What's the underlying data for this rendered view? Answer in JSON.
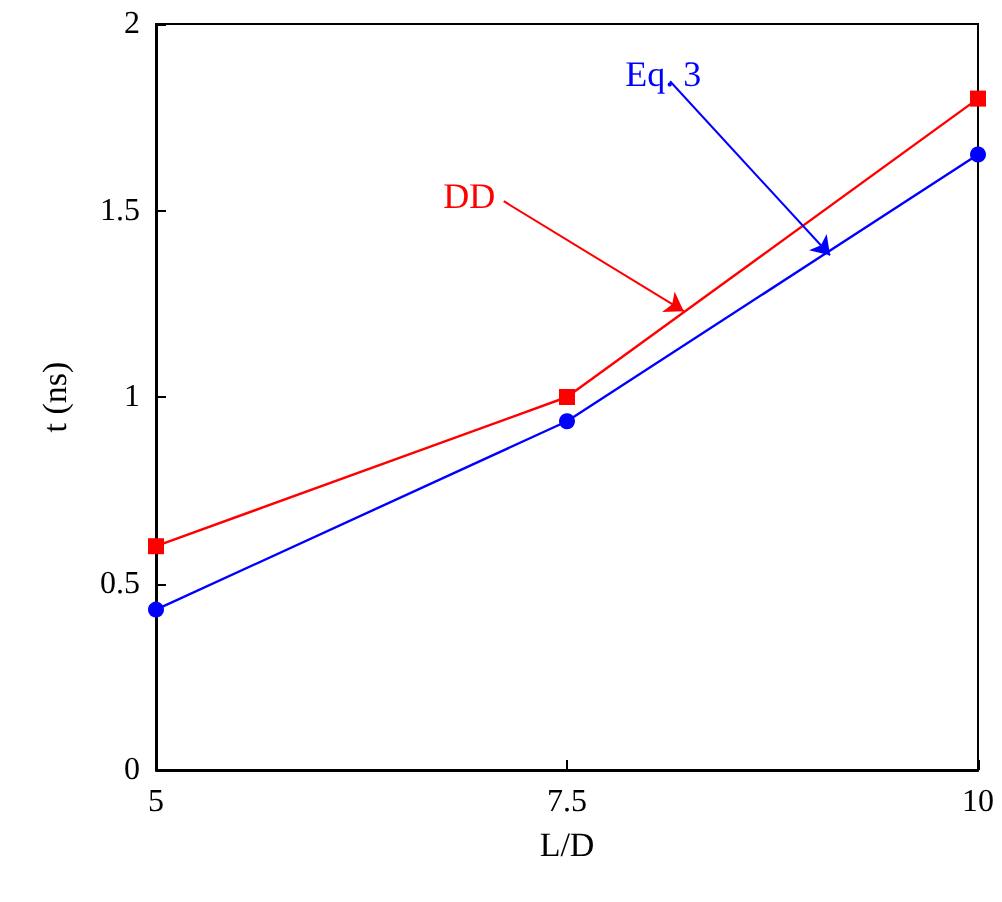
{
  "chart_data": {
    "type": "line",
    "xlabel": "L/D",
    "ylabel": "t (ns)",
    "x": [
      5,
      7.5,
      10
    ],
    "series": [
      {
        "color": "#ff0000",
        "marker": "square",
        "values": [
          0.6,
          1.0,
          1.8
        ]
      },
      {
        "color": "#0000ff",
        "marker": "circle",
        "values": [
          0.43,
          0.935,
          1.65
        ]
      }
    ],
    "annotations": [
      {
        "text": "DD",
        "x": 8.21,
        "y": 1.23
      },
      {
        "text": "Eq. 3",
        "x": 9.1,
        "y": 1.38
      }
    ],
    "xlim": [
      5,
      10
    ],
    "xticks": [
      5,
      7.5,
      10
    ],
    "ylim": [
      0,
      2
    ],
    "yticks": [
      0,
      0.5,
      1,
      1.5,
      2
    ],
    "grid": false
  }
}
